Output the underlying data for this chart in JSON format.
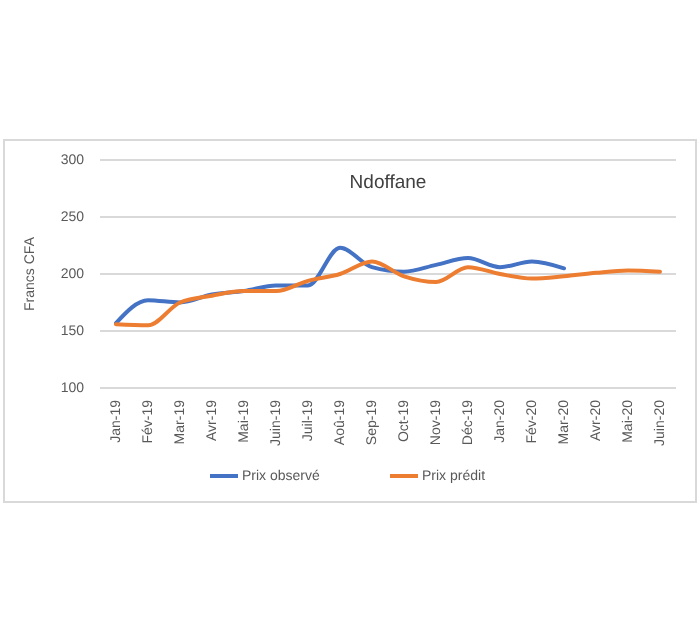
{
  "chart_data": {
    "type": "line",
    "title": "Ndoffane",
    "ylabel": "Francs CFA",
    "categories": [
      "Jan-19",
      "Fév-19",
      "Mar-19",
      "Avr-19",
      "Mai-19",
      "Juin-19",
      "Juil-19",
      "Aoû-19",
      "Sep-19",
      "Oct-19",
      "Nov-19",
      "Déc-19",
      "Jan-20",
      "Fév-20",
      "Mar-20",
      "Avr-20",
      "Mai-20",
      "Juin-20"
    ],
    "series": [
      {
        "name": "Prix observé",
        "color": "#4472c4",
        "values": [
          157,
          177,
          175,
          182,
          185,
          190,
          190,
          223,
          206,
          202,
          208,
          214,
          206,
          211,
          205,
          null,
          null,
          null
        ]
      },
      {
        "name": "Prix prédit",
        "color": "#ed7d31",
        "values": [
          156,
          155,
          175,
          181,
          185,
          185,
          194,
          200,
          211,
          198,
          193,
          206,
          200,
          196,
          198,
          201,
          203,
          202
        ]
      }
    ],
    "ylim": [
      100,
      300
    ],
    "yticks": [
      100,
      150,
      200,
      250,
      300
    ],
    "grid": "y",
    "legend": "bottom"
  }
}
